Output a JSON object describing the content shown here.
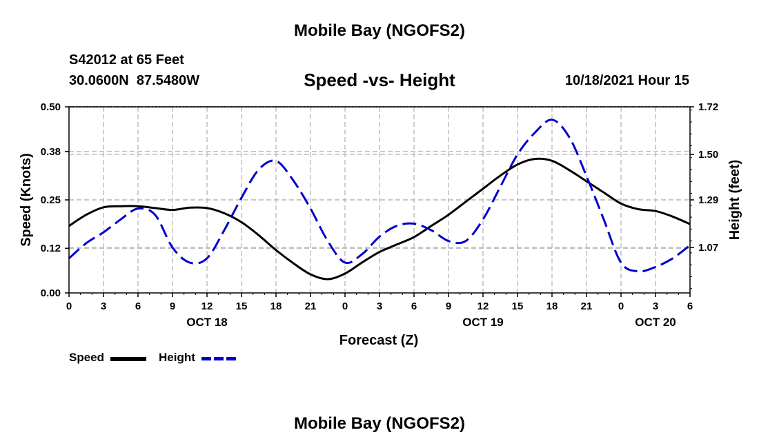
{
  "header": {
    "title": "Mobile Bay (NGOFS2)",
    "station": "S42012 at 65 Feet",
    "coords": "30.0600N  87.5480W",
    "subtitle": "Speed -vs- Height",
    "datetime": "10/18/2021 Hour 15"
  },
  "footer": {
    "title": "Mobile Bay (NGOFS2)"
  },
  "legend": {
    "speed_label": "Speed",
    "height_label": "Height",
    "speed_color": "#000000",
    "height_color": "#0000cc"
  },
  "chart_data": {
    "type": "line",
    "title": "Speed -vs- Height",
    "xlabel": "Forecast (Z)",
    "ylabel": "Speed (Knots)",
    "y2label": "Height (feet)",
    "xlim": [
      0,
      54
    ],
    "ylim": [
      0,
      0.5
    ],
    "y2lim": [
      0.86,
      1.72
    ],
    "x_ticks": [
      0,
      3,
      6,
      9,
      12,
      15,
      18,
      21,
      24,
      27,
      30,
      33,
      36,
      39,
      42,
      45,
      48,
      51,
      54
    ],
    "x_tick_labels": [
      "0",
      "3",
      "6",
      "9",
      "12",
      "15",
      "18",
      "21",
      "0",
      "3",
      "6",
      "9",
      "12",
      "15",
      "18",
      "21",
      "0",
      "3",
      "6"
    ],
    "day_labels": [
      {
        "label": "OCT 18",
        "x": 12
      },
      {
        "label": "OCT 19",
        "x": 36
      },
      {
        "label": "OCT 20",
        "x": 51
      }
    ],
    "y_ticks": [
      0.0,
      0.12,
      0.25,
      0.38,
      0.5
    ],
    "y_tick_labels": [
      "0.00",
      "0.12",
      "0.25",
      "0.38",
      "0.50"
    ],
    "y2_ticks": [
      1.07,
      1.29,
      1.5,
      1.72
    ],
    "y2_tick_labels": [
      "1.07",
      "1.29",
      "1.50",
      "1.72"
    ],
    "grid": true,
    "legend_position": "bottom-left",
    "series": [
      {
        "name": "Speed",
        "axis": "left",
        "style": "solid",
        "x": [
          0,
          1.5,
          3,
          4.5,
          6,
          7.5,
          9,
          10.5,
          12,
          13.5,
          15,
          16.5,
          18,
          19.5,
          21,
          22.5,
          24,
          25.5,
          27,
          28.5,
          30,
          31.5,
          33,
          34.5,
          36,
          37.5,
          39,
          40.5,
          42,
          43.5,
          45,
          46.5,
          48,
          49.5,
          51,
          52.5,
          54
        ],
        "values": [
          0.18,
          0.21,
          0.23,
          0.233,
          0.233,
          0.228,
          0.223,
          0.229,
          0.228,
          0.214,
          0.19,
          0.155,
          0.115,
          0.08,
          0.05,
          0.037,
          0.052,
          0.082,
          0.11,
          0.13,
          0.15,
          0.18,
          0.21,
          0.245,
          0.28,
          0.315,
          0.345,
          0.36,
          0.355,
          0.33,
          0.3,
          0.27,
          0.24,
          0.225,
          0.22,
          0.205,
          0.185
        ]
      },
      {
        "name": "Height",
        "axis": "right",
        "style": "dashed",
        "x": [
          0,
          1.5,
          3,
          4.5,
          6,
          7.5,
          9,
          10.5,
          12,
          13.5,
          15,
          16.5,
          18,
          19.5,
          21,
          22.5,
          24,
          25.5,
          27,
          28.5,
          30,
          31.5,
          33,
          34.5,
          36,
          37.5,
          39,
          40.5,
          42,
          43.5,
          45,
          46.5,
          48,
          49.5,
          51,
          52.5,
          54
        ],
        "values": [
          1.02,
          1.09,
          1.14,
          1.2,
          1.25,
          1.22,
          1.07,
          1.0,
          1.02,
          1.15,
          1.3,
          1.43,
          1.47,
          1.38,
          1.25,
          1.1,
          1.0,
          1.04,
          1.12,
          1.17,
          1.18,
          1.15,
          1.1,
          1.1,
          1.2,
          1.35,
          1.5,
          1.6,
          1.66,
          1.58,
          1.4,
          1.2,
          1.0,
          0.96,
          0.98,
          1.02,
          1.08
        ]
      }
    ]
  }
}
